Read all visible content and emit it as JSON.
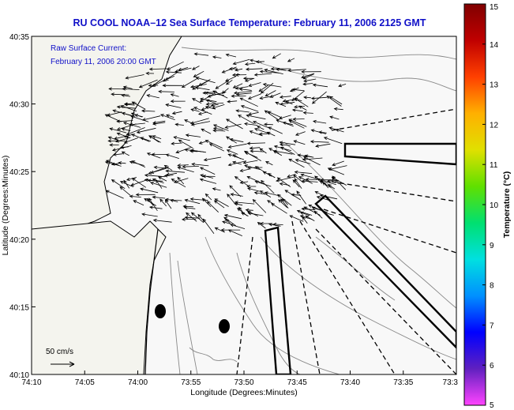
{
  "title": "RU COOL  NOAA–12  Sea Surface Temperature:  February 11, 2006 2125 GMT",
  "overlay": {
    "label_line1": "Raw Surface Current:",
    "label_line2": "February 11, 2006 20:00 GMT",
    "scale_label": "50 cm/s"
  },
  "axes": {
    "xlabel": "Longitude (Degrees:Minutes)",
    "ylabel": "Latitude (Degrees:Minutes)",
    "x_ticks": [
      "74:10",
      "74:05",
      "74:00",
      "73:55",
      "73:50",
      "73:45",
      "73:40",
      "73:35",
      "73:3"
    ],
    "y_ticks": [
      "40:35",
      "40:30",
      "40:25",
      "40:20",
      "40:15",
      "40:10"
    ]
  },
  "colorbar": {
    "label": "Temperature (°C)",
    "ticks": [
      "15",
      "14",
      "13",
      "12",
      "11",
      "10",
      "9",
      "8",
      "7",
      "6",
      "5"
    ],
    "min": 5,
    "max": 15,
    "colors": [
      "#ff44ff",
      "#6020c0",
      "#0000ff",
      "#0090ff",
      "#00e0e0",
      "#00e070",
      "#60e000",
      "#e0e000",
      "#ffb000",
      "#ff4000",
      "#c00000",
      "#800000"
    ]
  }
}
